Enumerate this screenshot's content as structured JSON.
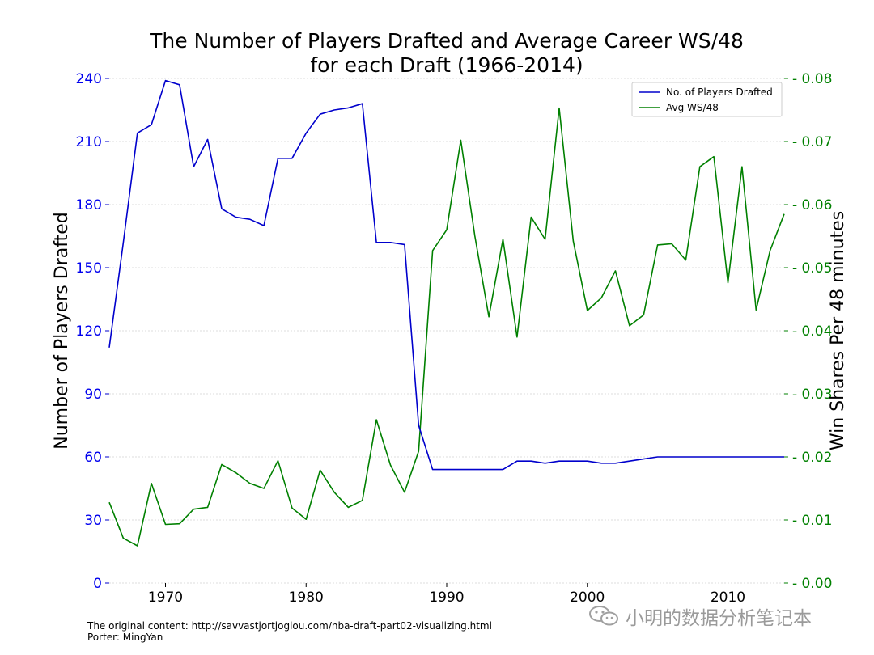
{
  "chart_data": {
    "type": "line",
    "title_lines": [
      "The Number of Players Drafted and Average Career WS/48",
      "for each Draft (1966-2014)"
    ],
    "x": [
      1966,
      1967,
      1968,
      1969,
      1970,
      1971,
      1972,
      1973,
      1974,
      1975,
      1976,
      1977,
      1978,
      1979,
      1980,
      1981,
      1982,
      1983,
      1984,
      1985,
      1986,
      1987,
      1988,
      1989,
      1990,
      1991,
      1992,
      1993,
      1994,
      1995,
      1996,
      1997,
      1998,
      1999,
      2000,
      2001,
      2002,
      2003,
      2004,
      2005,
      2006,
      2007,
      2008,
      2009,
      2010,
      2011,
      2012,
      2013,
      2014
    ],
    "series": [
      {
        "name": "No. of Players Drafted",
        "axis": "left",
        "color": "#0000cc",
        "values": [
          112,
          162,
          214,
          218,
          239,
          237,
          198,
          211,
          178,
          174,
          173,
          170,
          202,
          202,
          214,
          223,
          225,
          226,
          228,
          162,
          162,
          161,
          75,
          54,
          54,
          54,
          54,
          54,
          54,
          58,
          58,
          57,
          58,
          58,
          58,
          57,
          57,
          58,
          59,
          60,
          60,
          60,
          60,
          60,
          60,
          60,
          60,
          60,
          60
        ]
      },
      {
        "name": "Avg WS/48",
        "axis": "right",
        "color": "#008000",
        "values": [
          0.0128,
          0.0071,
          0.0059,
          0.0158,
          0.0093,
          0.0094,
          0.0117,
          0.012,
          0.0188,
          0.0175,
          0.0158,
          0.015,
          0.0194,
          0.0119,
          0.0101,
          0.0179,
          0.0144,
          0.012,
          0.0131,
          0.0259,
          0.0187,
          0.0144,
          0.0209,
          0.0527,
          0.056,
          0.0702,
          0.055,
          0.0422,
          0.0545,
          0.039,
          0.058,
          0.0545,
          0.0753,
          0.0542,
          0.0432,
          0.0452,
          0.0495,
          0.0408,
          0.0425,
          0.0536,
          0.0538,
          0.0512,
          0.066,
          0.0676,
          0.0476,
          0.066,
          0.0433,
          0.0527,
          0.0585
        ]
      }
    ],
    "xlim": [
      1966,
      2014
    ],
    "x_ticks": [
      1970,
      1980,
      1990,
      2000,
      2010
    ],
    "ylim_left": [
      0,
      240
    ],
    "y_ticks_left": [
      0,
      30,
      60,
      90,
      120,
      150,
      180,
      210,
      240
    ],
    "ylim_right": [
      0,
      0.08
    ],
    "y_ticks_right": [
      "0.00",
      "0.01",
      "0.02",
      "0.03",
      "0.04",
      "0.05",
      "0.06",
      "0.07",
      "0.08"
    ],
    "ylabel_left": "Number of Players Drafted",
    "ylabel_right": "Win Shares Per 48 minutes",
    "legend_position": "top-right",
    "grid": true
  },
  "footer": {
    "line1": "The original content: http://savvastjortjoglou.com/nba-draft-part02-visualizing.html",
    "line2": "Porter: MingYan"
  },
  "watermark": {
    "text": "小明的数据分析笔记本",
    "icon": "wechat-icon"
  }
}
